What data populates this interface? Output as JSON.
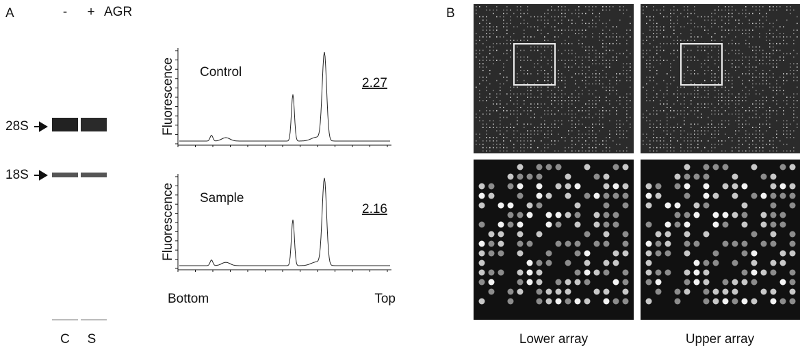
{
  "panel_a": {
    "label": "A",
    "gel": {
      "lane_signs": [
        "-",
        "+"
      ],
      "treatment": "AGR",
      "bands": [
        "28S",
        "18S"
      ],
      "lanes": [
        "C",
        "S"
      ]
    },
    "traces": [
      {
        "title": "Control",
        "axis_label": "Fluorescence",
        "ratio": "2.27"
      },
      {
        "title": "Sample",
        "axis_label": "Fluorescence",
        "ratio": "2.16"
      }
    ],
    "x_ends": [
      "Bottom",
      "Top"
    ]
  },
  "panel_b": {
    "label": "B",
    "arrays": [
      "Lower array",
      "Upper array"
    ]
  }
}
